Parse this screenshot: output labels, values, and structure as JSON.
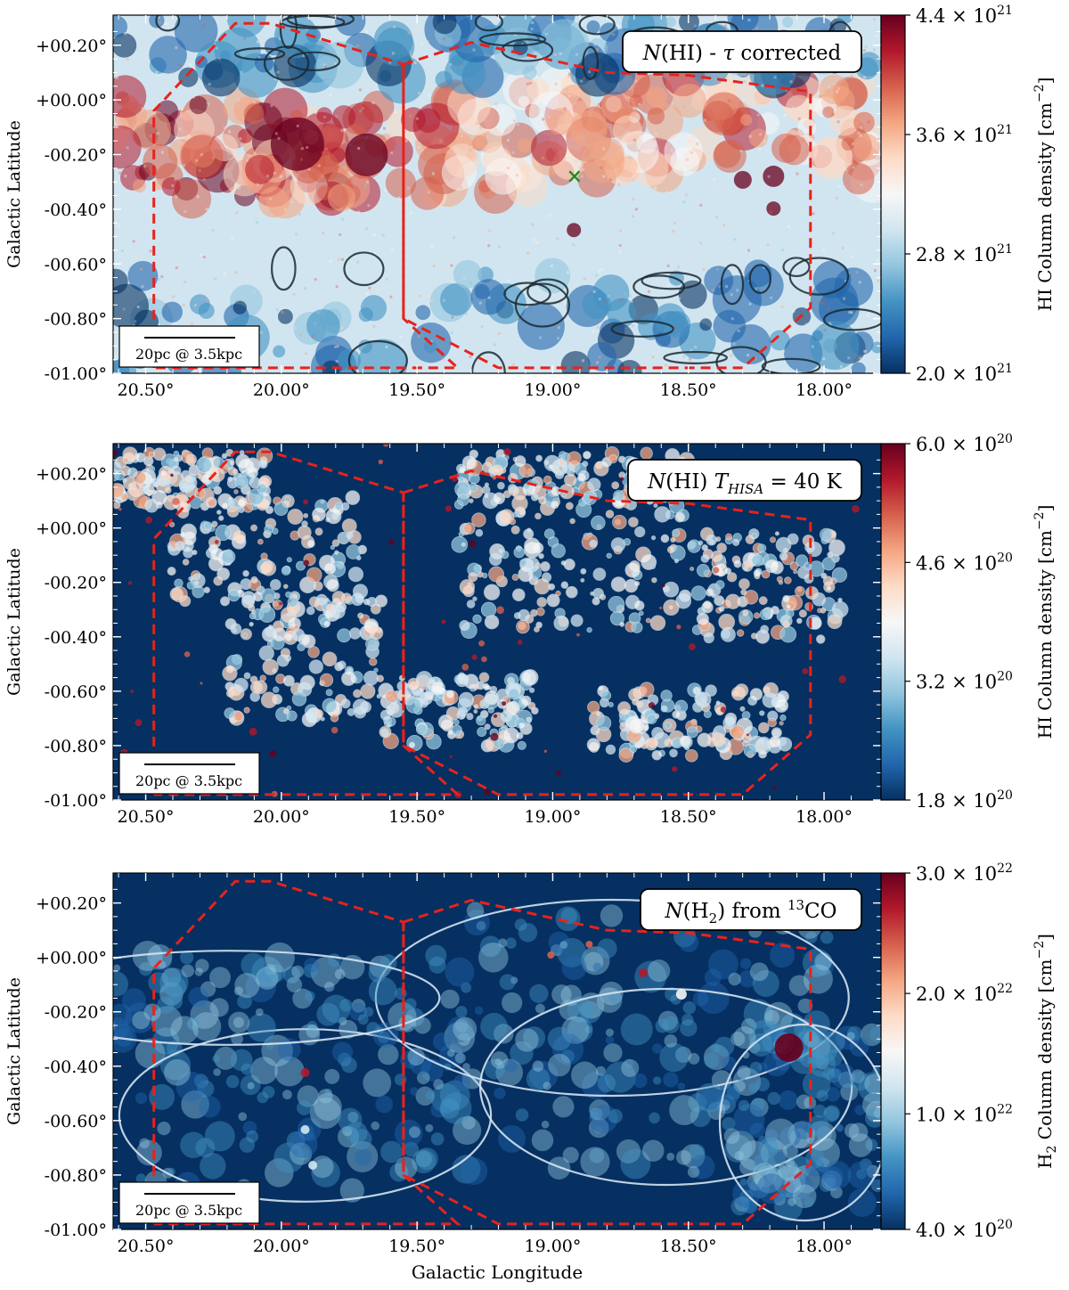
{
  "colors": {
    "cmap": [
      "#053061",
      "#2166ac",
      "#4393c3",
      "#92c5de",
      "#d1e5f0",
      "#f7f7f7",
      "#fddbc7",
      "#f4a582",
      "#d6604d",
      "#b2182b",
      "#67001f"
    ],
    "boundary": "#e8221c",
    "contour_dark": "#1a2a33",
    "contour_light": "#d5e3f1",
    "marker": "#1a8f1a"
  },
  "chart_data": [
    {
      "type": "heatmap",
      "title": "",
      "xlabel": "",
      "ylabel": "Galactic Latitude",
      "xlim": [
        20.62,
        17.79
      ],
      "ylim": [
        -1.0,
        0.31
      ],
      "x_tick_labels": [
        "20.50°",
        "20.00°",
        "19.50°",
        "19.00°",
        "18.50°",
        "18.00°"
      ],
      "y_tick_labels": [
        "+00.20°",
        "+00.00°",
        "-00.20°",
        "-00.40°",
        "-00.60°",
        "-00.80°",
        "-01.00°"
      ],
      "annotation_parts": [
        "N",
        "(HI) - ",
        "τ",
        " corrected"
      ],
      "scalebar_label": "20pc @ 3.5kpc",
      "colorbar": {
        "label": "HI Column density [cm",
        "label_exp": "−2",
        "label_end": "]",
        "ticks": [
          {
            "value": 4.4e+21,
            "mantissa": "4.4",
            "exp": "21"
          },
          {
            "value": 3.6e+21,
            "mantissa": "3.6",
            "exp": "21"
          },
          {
            "value": 2.8e+21,
            "mantissa": "2.8",
            "exp": "21"
          },
          {
            "value": 2e+21,
            "mantissa": "2.0",
            "exp": "21"
          }
        ],
        "range": [
          2e+21,
          4.4e+21
        ]
      },
      "marker": {
        "l": 18.92,
        "b": -0.28,
        "symbol": "×"
      },
      "contour_color": "dark"
    },
    {
      "type": "heatmap",
      "title": "",
      "xlabel": "",
      "ylabel": "Galactic Latitude",
      "xlim": [
        20.62,
        17.79
      ],
      "ylim": [
        -1.0,
        0.31
      ],
      "x_tick_labels": [
        "20.50°",
        "20.00°",
        "19.50°",
        "19.00°",
        "18.50°",
        "18.00°"
      ],
      "y_tick_labels": [
        "+00.20°",
        "+00.00°",
        "-00.20°",
        "-00.40°",
        "-00.60°",
        "-00.80°",
        "-01.00°"
      ],
      "annotation_parts": [
        "N",
        "(HI) ",
        "T",
        "HISA",
        " = 40 K"
      ],
      "scalebar_label": "20pc @ 3.5kpc",
      "colorbar": {
        "label": "HI Column density [cm",
        "label_exp": "−2",
        "label_end": "]",
        "ticks": [
          {
            "value": 6e+20,
            "mantissa": "6.0",
            "exp": "20"
          },
          {
            "value": 4.6e+20,
            "mantissa": "4.6",
            "exp": "20"
          },
          {
            "value": 3.2e+20,
            "mantissa": "3.2",
            "exp": "20"
          },
          {
            "value": 1.8e+20,
            "mantissa": "1.8",
            "exp": "20"
          }
        ],
        "range": [
          1.8e+20,
          6e+20
        ]
      },
      "contour_color": "light"
    },
    {
      "type": "heatmap",
      "title": "",
      "xlabel": "Galactic Longitude",
      "ylabel": "Galactic Latitude",
      "xlim": [
        20.62,
        17.79
      ],
      "ylim": [
        -1.0,
        0.31
      ],
      "x_tick_labels": [
        "20.50°",
        "20.00°",
        "19.50°",
        "19.00°",
        "18.50°",
        "18.00°"
      ],
      "y_tick_labels": [
        "+00.20°",
        "+00.00°",
        "-00.20°",
        "-00.40°",
        "-00.60°",
        "-00.80°",
        "-01.00°"
      ],
      "annotation_parts": [
        "N",
        "(H",
        "2",
        ") from ",
        "13",
        "CO"
      ],
      "scalebar_label": "20pc @ 3.5kpc",
      "colorbar": {
        "label": "H",
        "label_sub": "2",
        "label_rest": " Column density [cm",
        "label_exp": "−2",
        "label_end": "]",
        "ticks": [
          {
            "value": 3e+22,
            "mantissa": "3.0",
            "exp": "22"
          },
          {
            "value": 2e+22,
            "mantissa": "2.0",
            "exp": "22"
          },
          {
            "value": 1e+22,
            "mantissa": "1.0",
            "exp": "22"
          },
          {
            "value": 4e+20,
            "mantissa": "4.0",
            "exp": "20"
          }
        ],
        "range": [
          4e+20,
          3e+22
        ]
      },
      "contour_color": "light"
    }
  ],
  "boundary": {
    "left": [
      [
        20.47,
        -0.98
      ],
      [
        20.47,
        -0.04
      ],
      [
        20.17,
        0.28
      ],
      [
        20.04,
        0.28
      ],
      [
        19.55,
        0.13
      ],
      [
        19.55,
        -0.8
      ],
      [
        19.35,
        -0.98
      ],
      [
        20.47,
        -0.98
      ]
    ],
    "right": [
      [
        19.55,
        0.13
      ],
      [
        19.3,
        0.21
      ],
      [
        18.8,
        0.1
      ],
      [
        18.5,
        0.09
      ],
      [
        18.05,
        0.03
      ],
      [
        18.05,
        -0.76
      ],
      [
        18.3,
        -0.98
      ],
      [
        19.2,
        -0.98
      ],
      [
        19.55,
        -0.8
      ],
      [
        19.55,
        0.13
      ]
    ]
  }
}
